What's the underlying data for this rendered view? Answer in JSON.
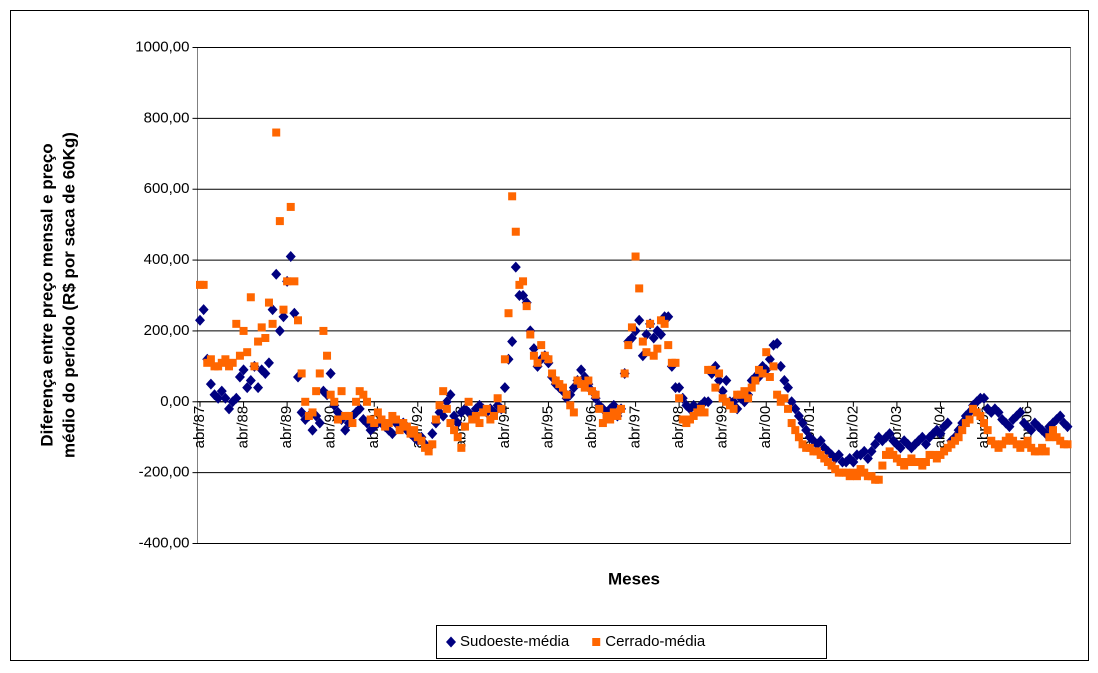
{
  "chart_data": {
    "type": "scatter",
    "y_label": [
      "Diferença entre preço mensal e preço",
      "médio do período (R$ por saca de 60Kg)"
    ],
    "x_label": "Meses",
    "categories": [
      "abr/87",
      null,
      null,
      null,
      null,
      null,
      null,
      null,
      null,
      null,
      null,
      null,
      "abr/88",
      null,
      null,
      null,
      null,
      null,
      null,
      null,
      null,
      null,
      null,
      null,
      "abr/89",
      null,
      null,
      null,
      null,
      null,
      null,
      null,
      null,
      null,
      null,
      null,
      "abr/90",
      null,
      null,
      null,
      null,
      null,
      null,
      null,
      null,
      null,
      null,
      null,
      "abr/91",
      null,
      null,
      null,
      null,
      null,
      null,
      null,
      null,
      null,
      null,
      null,
      "abr/92",
      null,
      null,
      null,
      null,
      null,
      null,
      null,
      null,
      null,
      null,
      null,
      "abr/93",
      null,
      null,
      null,
      null,
      null,
      null,
      null,
      null,
      null,
      null,
      null,
      "abr/94",
      null,
      null,
      null,
      null,
      null,
      null,
      null,
      null,
      null,
      null,
      null,
      "abr/95",
      null,
      null,
      null,
      null,
      null,
      null,
      null,
      null,
      null,
      null,
      null,
      "abr/96",
      null,
      null,
      null,
      null,
      null,
      null,
      null,
      null,
      null,
      null,
      null,
      "abr/97",
      null,
      null,
      null,
      null,
      null,
      null,
      null,
      null,
      null,
      null,
      null,
      "abr/98",
      null,
      null,
      null,
      null,
      null,
      null,
      null,
      null,
      null,
      null,
      null,
      "abr/99",
      null,
      null,
      null,
      null,
      null,
      null,
      null,
      null,
      null,
      null,
      null,
      "abr/00",
      null,
      null,
      null,
      null,
      null,
      null,
      null,
      null,
      null,
      null,
      null,
      "abr/01",
      null,
      null,
      null,
      null,
      null,
      null,
      null,
      null,
      null,
      null,
      null,
      "abr/02",
      null,
      null,
      null,
      null,
      null,
      null,
      null,
      null,
      null,
      null,
      null,
      "abr/03",
      null,
      null,
      null,
      null,
      null,
      null,
      null,
      null,
      null,
      null,
      null,
      "abr/04",
      null,
      null,
      null,
      null,
      null,
      null,
      null,
      null,
      null,
      null,
      null,
      "abr/05",
      null,
      null,
      null,
      null,
      null,
      null,
      null,
      null,
      null,
      null,
      null,
      "abr/06",
      null,
      null,
      null,
      null,
      null,
      null,
      null,
      null,
      null,
      null,
      null
    ],
    "series": [
      {
        "name": "Sudoeste-média",
        "color": "#000080",
        "marker": "diamond",
        "values": [
          230,
          260,
          120,
          50,
          20,
          10,
          30,
          10,
          -20,
          0,
          10,
          70,
          90,
          40,
          60,
          100,
          40,
          90,
          80,
          110,
          260,
          360,
          200,
          240,
          340,
          410,
          250,
          70,
          -30,
          -50,
          -40,
          -80,
          -40,
          -60,
          30,
          20,
          80,
          -10,
          -30,
          -50,
          -80,
          -60,
          -40,
          -30,
          -20,
          -50,
          -60,
          -80,
          -70,
          -60,
          -60,
          -70,
          -80,
          -90,
          -60,
          -70,
          -60,
          -80,
          -90,
          -100,
          -110,
          -100,
          -120,
          -130,
          -90,
          -60,
          -30,
          -40,
          0,
          20,
          -40,
          -60,
          -30,
          -20,
          -30,
          -40,
          -20,
          -10,
          -20,
          -30,
          -20,
          -30,
          -10,
          -20,
          40,
          120,
          170,
          380,
          300,
          300,
          280,
          200,
          150,
          100,
          120,
          130,
          110,
          70,
          50,
          40,
          30,
          10,
          20,
          40,
          60,
          90,
          70,
          50,
          30,
          10,
          -10,
          -20,
          -30,
          -20,
          -10,
          -40,
          -20,
          80,
          170,
          180,
          200,
          230,
          130,
          190,
          220,
          180,
          200,
          190,
          240,
          240,
          100,
          40,
          40,
          10,
          -10,
          -20,
          -10,
          -20,
          -10,
          0,
          0,
          80,
          100,
          60,
          30,
          60,
          0,
          0,
          -20,
          10,
          0,
          20,
          60,
          70,
          70,
          100,
          90,
          120,
          160,
          165,
          100,
          60,
          40,
          0,
          -20,
          -40,
          -60,
          -80,
          -100,
          -110,
          -120,
          -110,
          -130,
          -140,
          -150,
          -160,
          -150,
          -170,
          -170,
          -160,
          -170,
          -150,
          -150,
          -140,
          -160,
          -140,
          -120,
          -100,
          -110,
          -100,
          -90,
          -110,
          -120,
          -130,
          -110,
          -120,
          -130,
          -120,
          -110,
          -100,
          -120,
          -100,
          -90,
          -80,
          -90,
          -70,
          -60,
          -110,
          -100,
          -80,
          -60,
          -40,
          -30,
          -10,
          0,
          10,
          10,
          -20,
          -30,
          -20,
          -30,
          -50,
          -60,
          -70,
          -50,
          -40,
          -30,
          -60,
          -70,
          -80,
          -60,
          -70,
          -80,
          -90,
          -70,
          -60,
          -50,
          -40,
          -60,
          -70
        ]
      },
      {
        "name": "Cerrado-média",
        "color": "#ff6600",
        "marker": "square",
        "values": [
          330,
          330,
          110,
          120,
          100,
          100,
          110,
          120,
          100,
          110,
          220,
          130,
          200,
          140,
          295,
          100,
          170,
          210,
          180,
          280,
          220,
          760,
          510,
          260,
          340,
          550,
          340,
          230,
          80,
          0,
          -40,
          -30,
          30,
          80,
          200,
          130,
          20,
          0,
          -50,
          30,
          -40,
          -40,
          -60,
          0,
          30,
          20,
          0,
          -50,
          -60,
          -30,
          -50,
          -70,
          -60,
          -40,
          -50,
          -80,
          -60,
          -70,
          -90,
          -80,
          -100,
          -110,
          -130,
          -140,
          -120,
          -50,
          -10,
          30,
          -20,
          -60,
          -80,
          -100,
          -130,
          -70,
          0,
          -50,
          -40,
          -60,
          -30,
          -20,
          -50,
          -40,
          10,
          -20,
          120,
          250,
          580,
          480,
          330,
          340,
          270,
          190,
          130,
          110,
          160,
          130,
          120,
          80,
          60,
          50,
          40,
          20,
          -10,
          -30,
          60,
          50,
          40,
          60,
          30,
          20,
          -20,
          -60,
          -40,
          -50,
          -30,
          -40,
          -20,
          80,
          160,
          210,
          410,
          320,
          170,
          140,
          220,
          130,
          150,
          230,
          220,
          160,
          110,
          110,
          10,
          -50,
          -60,
          -50,
          -40,
          -30,
          -20,
          -30,
          90,
          90,
          40,
          80,
          10,
          0,
          -10,
          -20,
          20,
          20,
          30,
          10,
          40,
          60,
          90,
          80,
          140,
          70,
          100,
          20,
          0,
          10,
          -20,
          -60,
          -80,
          -100,
          -120,
          -130,
          -130,
          -140,
          -140,
          -150,
          -160,
          -170,
          -180,
          -190,
          -200,
          -200,
          -200,
          -210,
          -200,
          -210,
          -190,
          -200,
          -210,
          -210,
          -220,
          -220,
          -180,
          -150,
          -140,
          -150,
          -160,
          -170,
          -180,
          -170,
          -160,
          -170,
          -170,
          -180,
          -170,
          -150,
          -150,
          -160,
          -150,
          -140,
          -130,
          -120,
          -110,
          -100,
          -80,
          -60,
          -50,
          -20,
          -30,
          -40,
          -60,
          -80,
          -110,
          -120,
          -130,
          -120,
          -110,
          -100,
          -110,
          -120,
          -130,
          -120,
          -110,
          -130,
          -140,
          -140,
          -130,
          -140,
          -100,
          -80,
          -100,
          -110,
          -120,
          -120
        ]
      }
    ],
    "ylim": [
      -400,
      1000
    ],
    "yticks": [
      {
        "value": -400,
        "label": "-400,00"
      },
      {
        "value": -200,
        "label": "-200,00"
      },
      {
        "value": 0,
        "label": "0,00"
      },
      {
        "value": 200,
        "label": "200,00"
      },
      {
        "value": 400,
        "label": "400,00"
      },
      {
        "value": 600,
        "label": "600,00"
      },
      {
        "value": 800,
        "label": "800,00"
      },
      {
        "value": 1000,
        "label": "1000,00"
      }
    ],
    "grid": true,
    "legend": "bottom"
  }
}
